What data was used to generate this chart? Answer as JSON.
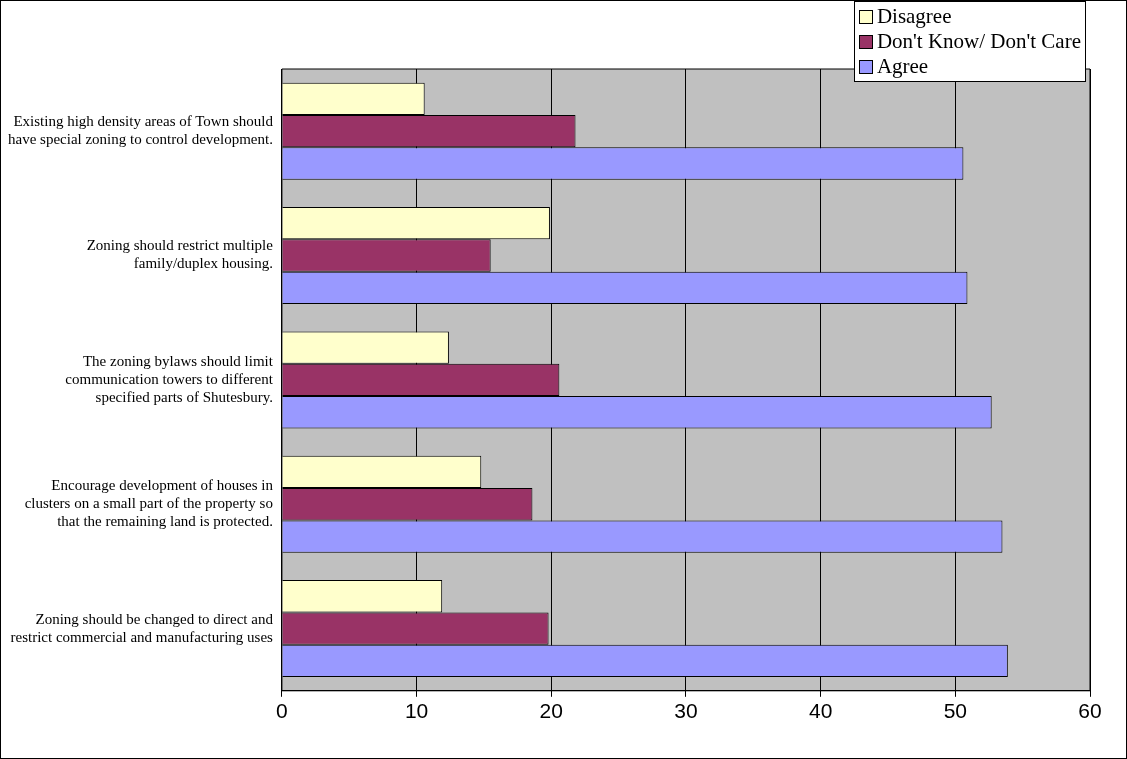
{
  "chart_data": {
    "type": "bar",
    "orientation": "horizontal",
    "categories": [
      "Existing high density areas of Town should have special zoning to control development.",
      "Zoning should restrict multiple family/duplex housing.",
      "The zoning bylaws should limit communication towers to different specified parts of Shutesbury.",
      "Encourage development of houses in clusters on a small part of the property so that the remaining land is protected.",
      "Zoning should be changed to direct and restrict commercial and manufacturing uses"
    ],
    "series": [
      {
        "name": "Disagree",
        "color": "#ffffcc",
        "values": [
          10.6,
          19.9,
          12.4,
          14.8,
          11.9
        ]
      },
      {
        "name": "Don't Know/ Don't Care",
        "color": "#993366",
        "values": [
          21.8,
          15.5,
          20.6,
          18.6,
          19.8
        ]
      },
      {
        "name": "Agree",
        "color": "#9999ff",
        "values": [
          50.6,
          50.9,
          52.7,
          53.5,
          53.9
        ]
      }
    ],
    "xlim": [
      0,
      60
    ],
    "xticks": [
      0,
      10,
      20,
      30,
      40,
      50,
      60
    ],
    "grid": "x",
    "legend": "top right"
  }
}
